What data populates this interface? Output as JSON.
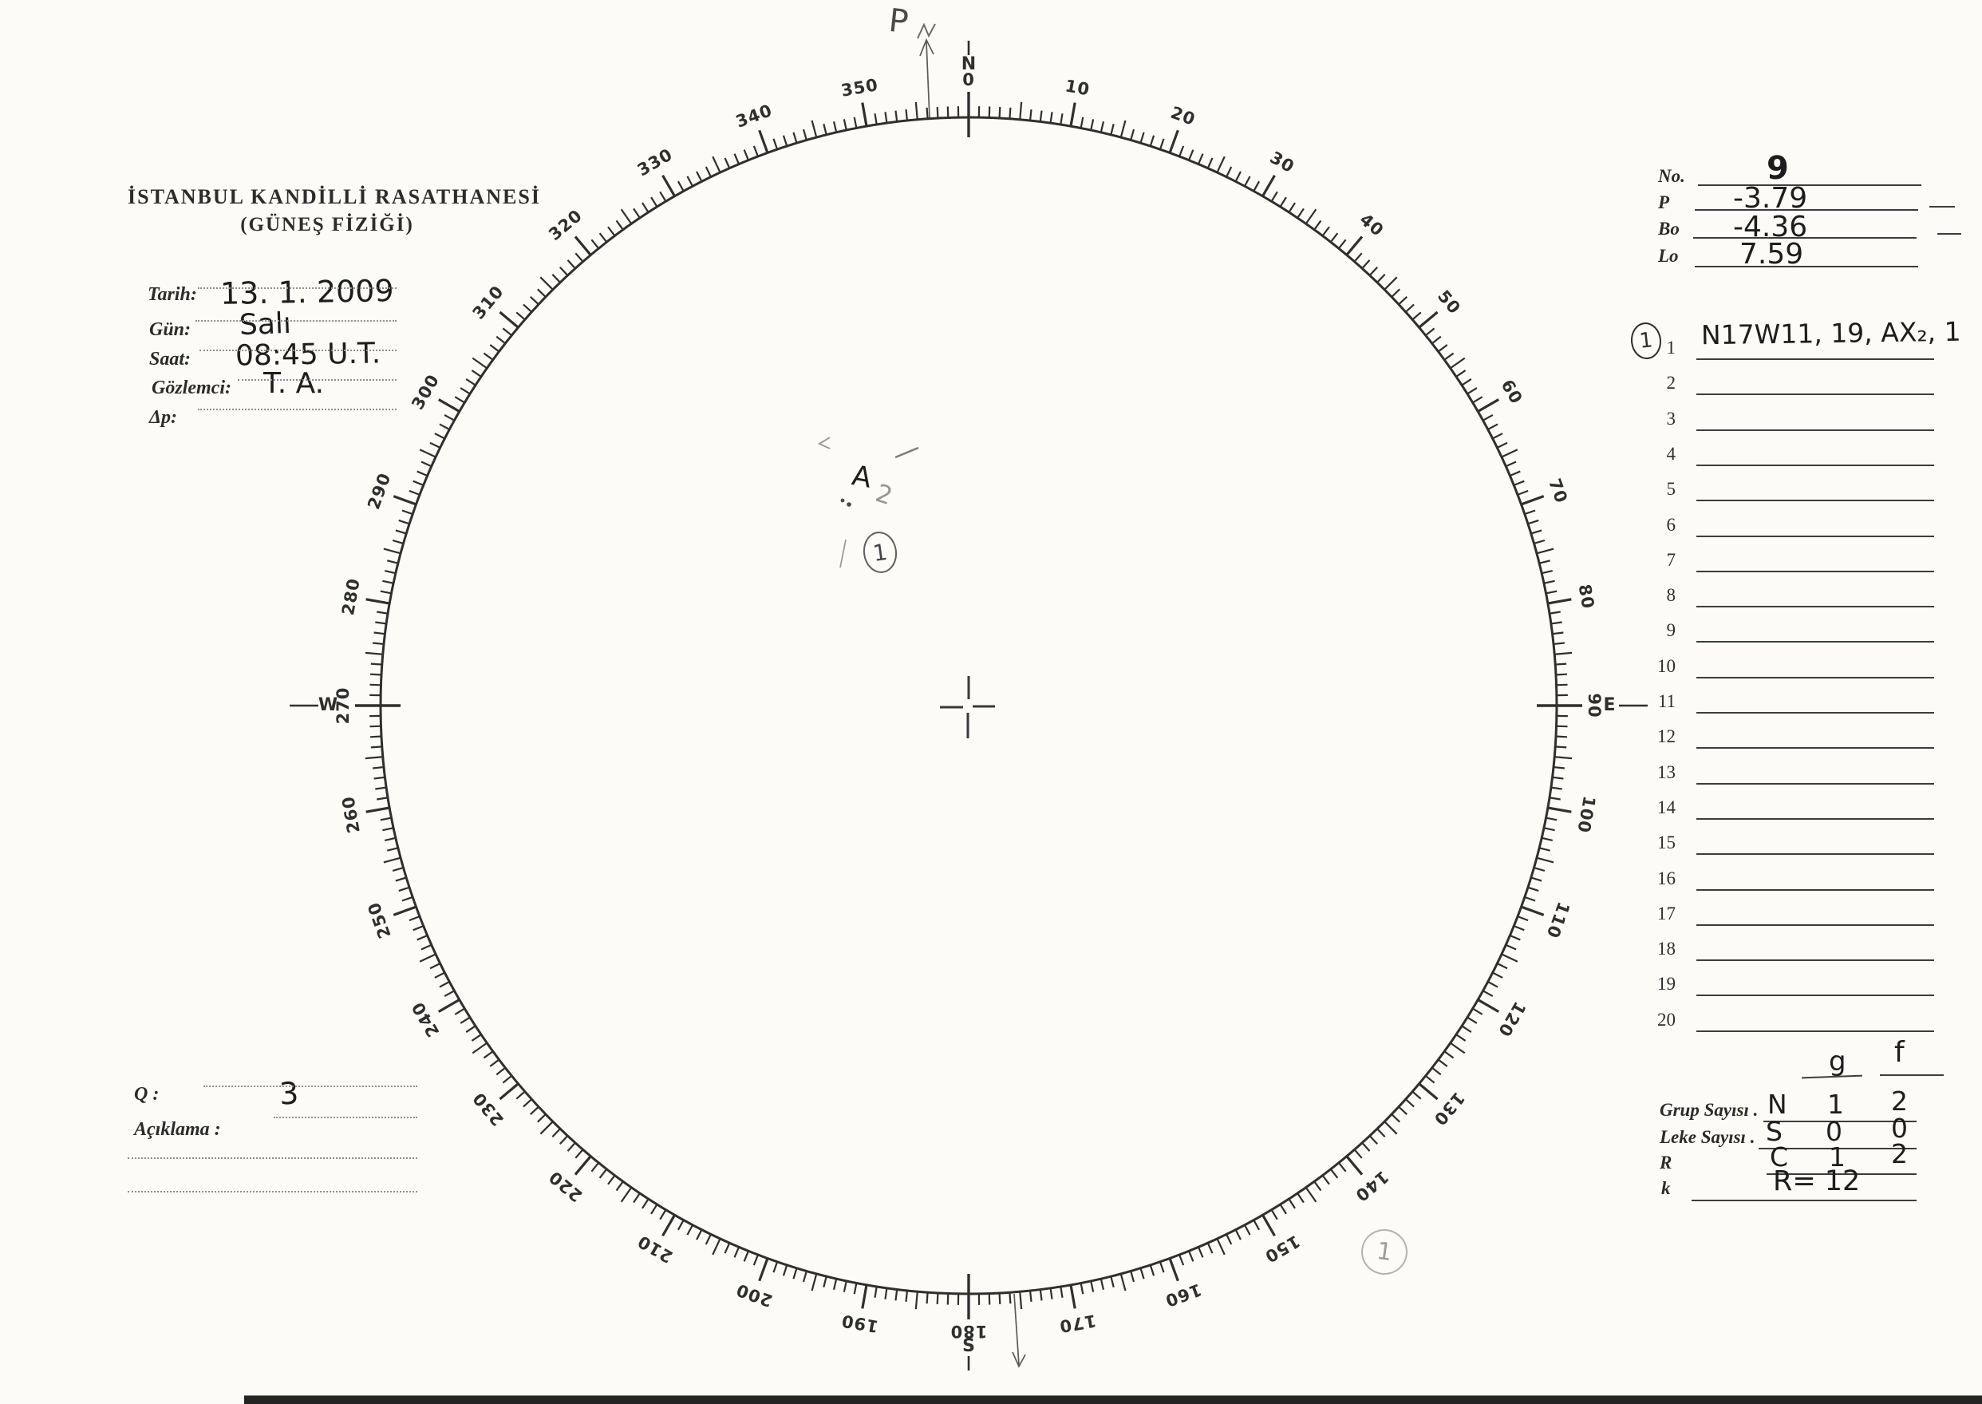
{
  "paper": {
    "ink_color": "#2f2f2f",
    "pencil_color": "#969696",
    "paper_color": "#fcfbf8"
  },
  "header": {
    "title_line1": "İSTANBUL KANDİLLİ RASATHANESİ",
    "title_line2": "(GÜNEŞ FİZİĞİ)"
  },
  "form": {
    "fields": [
      {
        "label": "Tarih:",
        "value": "13. 1. 2009"
      },
      {
        "label": "Gün:",
        "value": "Salı"
      },
      {
        "label": "Saat:",
        "value": "08:45 U.T."
      },
      {
        "label": "Gözlemci:",
        "value": "T. A."
      },
      {
        "label": "Δp:",
        "value": ""
      }
    ]
  },
  "quality": {
    "q_label": "Q :",
    "q_value": "3",
    "note_label": "Açıklama :",
    "note_value": ""
  },
  "ephemeris": {
    "rows": [
      {
        "label": "No.",
        "value": "9"
      },
      {
        "label": "P",
        "value": "-3.79"
      },
      {
        "label": "Bo",
        "value": "-4.36"
      },
      {
        "label": "Lo",
        "value": "7.59"
      }
    ]
  },
  "group_list": {
    "rows": [
      {
        "num": "1",
        "value": "N17W11, 19, AX₂, 1",
        "marked": true
      },
      {
        "num": "2",
        "value": ""
      },
      {
        "num": "3",
        "value": ""
      },
      {
        "num": "4",
        "value": ""
      },
      {
        "num": "5",
        "value": ""
      },
      {
        "num": "6",
        "value": ""
      },
      {
        "num": "7",
        "value": ""
      },
      {
        "num": "8",
        "value": ""
      },
      {
        "num": "9",
        "value": ""
      },
      {
        "num": "10",
        "value": ""
      },
      {
        "num": "11",
        "value": ""
      },
      {
        "num": "12",
        "value": ""
      },
      {
        "num": "13",
        "value": ""
      },
      {
        "num": "14",
        "value": ""
      },
      {
        "num": "15",
        "value": ""
      },
      {
        "num": "16",
        "value": ""
      },
      {
        "num": "17",
        "value": ""
      },
      {
        "num": "18",
        "value": ""
      },
      {
        "num": "19",
        "value": ""
      },
      {
        "num": "20",
        "value": ""
      }
    ]
  },
  "summary": {
    "g_header": "g",
    "f_header": "f",
    "rows": [
      {
        "label": "Grup Sayısı .",
        "letter": "N",
        "g": "1",
        "f": "2"
      },
      {
        "label": "Leke Sayısı .",
        "letter": "S",
        "g": "0",
        "f": "0"
      },
      {
        "label": "R",
        "letter": "C",
        "g": "1",
        "f": "2"
      },
      {
        "label": "k",
        "letter": "R= 12",
        "g": "",
        "f": ""
      }
    ]
  },
  "annotations": {
    "p_axis_label": "P",
    "row_marker_number": "1",
    "center_group_label": "A",
    "center_group_sub": "2",
    "center_circled_number": "1",
    "bottom_circled_number": "1"
  },
  "dial": {
    "tick_step_deg": 1,
    "medium_step_deg": 5,
    "label_step_deg": 10,
    "degree_labels": [
      {
        "deg": 10,
        "text": "10"
      },
      {
        "deg": 20,
        "text": "20"
      },
      {
        "deg": 30,
        "text": "30"
      },
      {
        "deg": 40,
        "text": "40"
      },
      {
        "deg": 50,
        "text": "50"
      },
      {
        "deg": 60,
        "text": "60"
      },
      {
        "deg": 70,
        "text": "70"
      },
      {
        "deg": 80,
        "text": "80"
      },
      {
        "deg": 100,
        "text": "100"
      },
      {
        "deg": 110,
        "text": "110"
      },
      {
        "deg": 120,
        "text": "120"
      },
      {
        "deg": 130,
        "text": "130"
      },
      {
        "deg": 140,
        "text": "140"
      },
      {
        "deg": 150,
        "text": "150"
      },
      {
        "deg": 160,
        "text": "160"
      },
      {
        "deg": 170,
        "text": "170"
      },
      {
        "deg": 190,
        "text": "190"
      },
      {
        "deg": 200,
        "text": "200"
      },
      {
        "deg": 210,
        "text": "210"
      },
      {
        "deg": 220,
        "text": "220"
      },
      {
        "deg": 230,
        "text": "230"
      },
      {
        "deg": 240,
        "text": "240"
      },
      {
        "deg": 250,
        "text": "250"
      },
      {
        "deg": 260,
        "text": "260"
      },
      {
        "deg": 280,
        "text": "280"
      },
      {
        "deg": 290,
        "text": "290"
      },
      {
        "deg": 300,
        "text": "300"
      },
      {
        "deg": 310,
        "text": "310"
      },
      {
        "deg": 320,
        "text": "320"
      },
      {
        "deg": 330,
        "text": "330"
      },
      {
        "deg": 340,
        "text": "340"
      },
      {
        "deg": 350,
        "text": "350"
      }
    ],
    "cardinals": [
      {
        "deg": 0,
        "number": "0",
        "letter": "N"
      },
      {
        "deg": 90,
        "number": "90",
        "letter": "E"
      },
      {
        "deg": 180,
        "number": "180",
        "letter": "S"
      },
      {
        "deg": 270,
        "number": "270",
        "letter": "W"
      }
    ]
  }
}
